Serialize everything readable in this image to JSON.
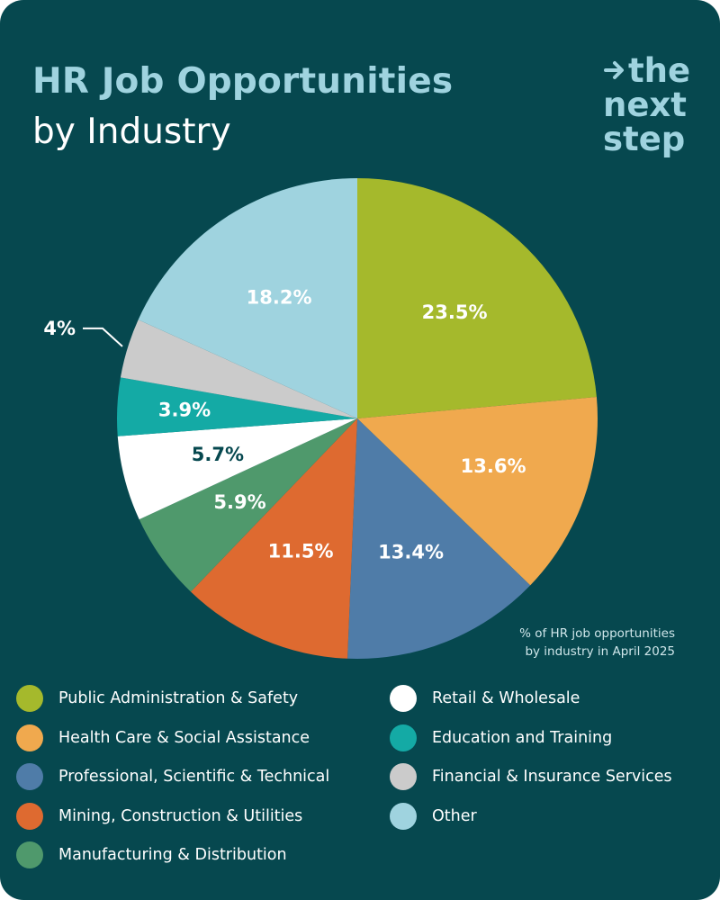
{
  "header": {
    "title_line1": "HR Job Opportunities",
    "title_line2": "by Industry"
  },
  "logo": {
    "line1": "the",
    "line2": "next",
    "line3": "step",
    "icon": "arrow-right-icon"
  },
  "note": {
    "line1": "% of HR job opportunities",
    "line2": "by industry in April 2025"
  },
  "colors": {
    "background": "#06484f",
    "title_accent": "#9fd3df"
  },
  "chart_data": {
    "type": "pie",
    "title": "HR Job Opportunities by Industry",
    "slices": [
      {
        "name": "Public Administration & Safety",
        "value": 23.5,
        "label": "23.5%",
        "color": "#a5b92c"
      },
      {
        "name": "Health Care & Social Assistance",
        "value": 13.6,
        "label": "13.6%",
        "color": "#f0a94e"
      },
      {
        "name": "Professional, Scientific & Technical",
        "value": 13.4,
        "label": "13.4%",
        "color": "#4f7ca8"
      },
      {
        "name": "Mining, Construction & Utilities",
        "value": 11.5,
        "label": "11.5%",
        "color": "#de6a30"
      },
      {
        "name": "Manufacturing & Distribution",
        "value": 5.9,
        "label": "5.9%",
        "color": "#4f996c"
      },
      {
        "name": "Retail & Wholesale",
        "value": 5.7,
        "label": "5.7%",
        "color": "#ffffff"
      },
      {
        "name": "Education and Training",
        "value": 3.9,
        "label": "3.9%",
        "color": "#14aaa5"
      },
      {
        "name": "Financial & Insurance Services",
        "value": 4,
        "label": "4%",
        "color": "#cbcbcb"
      },
      {
        "name": "Other",
        "value": 18.2,
        "label": "18.2%",
        "color": "#9fd3df"
      }
    ],
    "legend_placement": "bottom"
  },
  "legend": {
    "items": [
      {
        "label": "Public Administration & Safety",
        "color": "#a5b92c"
      },
      {
        "label": "Health Care & Social Assistance",
        "color": "#f0a94e"
      },
      {
        "label": "Professional, Scientific & Technical",
        "color": "#4f7ca8"
      },
      {
        "label": "Mining, Construction & Utilities",
        "color": "#de6a30"
      },
      {
        "label": "Manufacturing & Distribution",
        "color": "#4f996c"
      },
      {
        "label": "Retail & Wholesale",
        "color": "#ffffff"
      },
      {
        "label": "Education and Training",
        "color": "#14aaa5"
      },
      {
        "label": "Financial & Insurance Services",
        "color": "#cbcbcb"
      },
      {
        "label": "Other",
        "color": "#9fd3df"
      }
    ]
  }
}
